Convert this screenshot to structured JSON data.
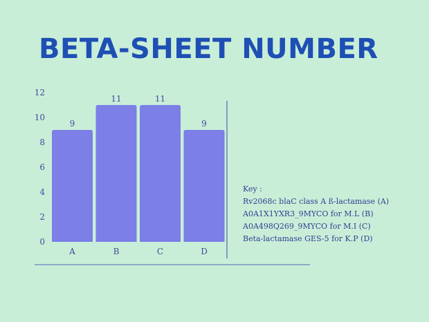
{
  "title": "BETA-SHEET NUMBER",
  "colors": {
    "background": "#c9eed8",
    "bar": "#7b7fe6",
    "title": "#1e4fb4",
    "axis": "#3b4a9a"
  },
  "chart_data": {
    "type": "bar",
    "categories": [
      "A",
      "B",
      "C",
      "D"
    ],
    "values": [
      9,
      11,
      11,
      9
    ],
    "ylim": [
      0,
      12
    ],
    "yticks": [
      0,
      2,
      4,
      6,
      8,
      10,
      12
    ],
    "grid": false,
    "data_labels": true
  },
  "key": {
    "heading": "Key :",
    "items": [
      "Rv2068c blaC class A ß-lactamase  (A)",
      "A0A1X1YXR3_9MYCO for M.L  (B)",
      "A0A498Q269_9MYCO for M.I (C)",
      "Beta-lactamase GES-5 for K.P (D)"
    ]
  }
}
